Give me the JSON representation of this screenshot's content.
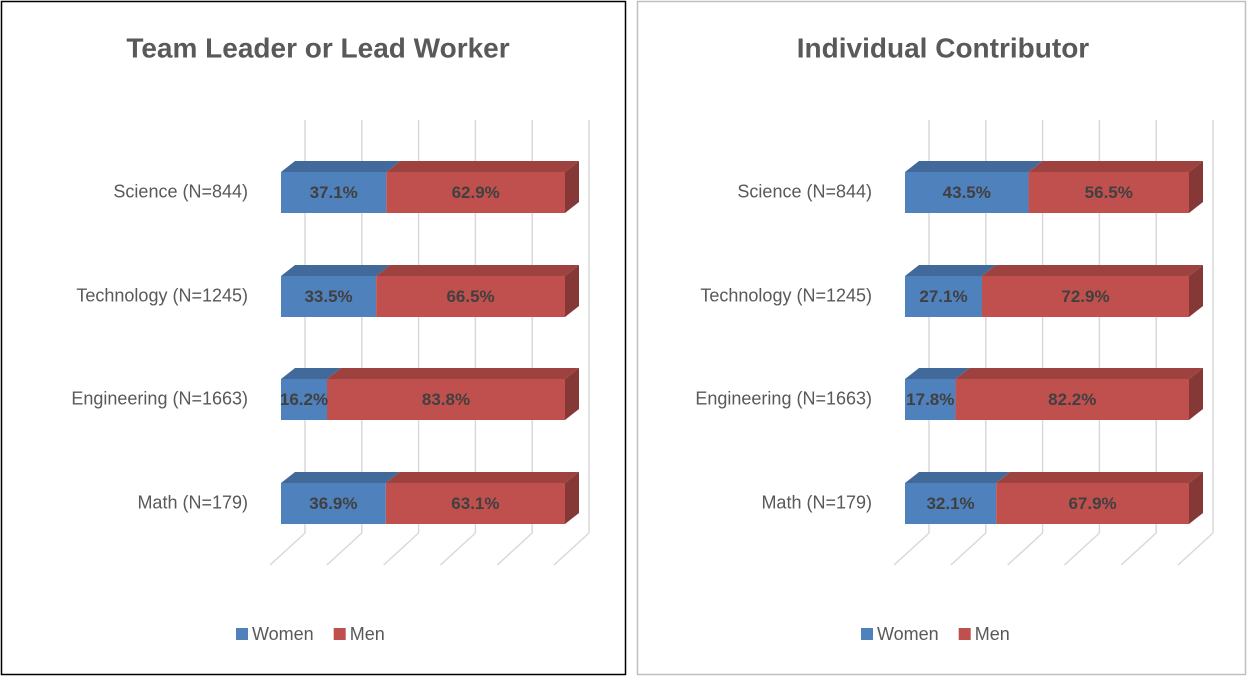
{
  "chart_data": [
    {
      "type": "bar",
      "stacked": true,
      "orientation": "horizontal",
      "title": "Team Leader or Lead Worker",
      "categories": [
        "Science (N=844)",
        "Technology (N=1245)",
        "Engineering (N=1663)",
        "Math (N=179)"
      ],
      "series": [
        {
          "name": "Women",
          "color": "#4f81bd",
          "values": [
            37.1,
            33.5,
            16.2,
            36.9
          ],
          "value_labels": [
            "37.1%",
            "33.5%",
            "16.2%",
            "36.9%"
          ]
        },
        {
          "name": "Men",
          "color": "#c0504d",
          "values": [
            62.9,
            66.5,
            83.8,
            63.1
          ],
          "value_labels": [
            "62.9%",
            "66.5%",
            "83.8%",
            "63.1%"
          ]
        }
      ],
      "xlim": [
        0,
        100
      ],
      "xticks": [
        0,
        20,
        40,
        60,
        80,
        100
      ],
      "grid": true,
      "legend": "bottom"
    },
    {
      "type": "bar",
      "stacked": true,
      "orientation": "horizontal",
      "title": "Individual Contributor",
      "categories": [
        "Science (N=844)",
        "Technology (N=1245)",
        "Engineering (N=1663)",
        "Math (N=179)"
      ],
      "series": [
        {
          "name": "Women",
          "color": "#4f81bd",
          "values": [
            43.5,
            27.1,
            17.8,
            32.1
          ],
          "value_labels": [
            "43.5%",
            "27.1%",
            "17.8%",
            "32.1%"
          ]
        },
        {
          "name": "Men",
          "color": "#c0504d",
          "values": [
            56.5,
            72.9,
            82.2,
            67.9
          ],
          "value_labels": [
            "56.5%",
            "72.9%",
            "82.2%",
            "67.9%"
          ]
        }
      ],
      "xlim": [
        0,
        100
      ],
      "xticks": [
        0,
        20,
        40,
        60,
        80,
        100
      ],
      "grid": true,
      "legend": "bottom"
    }
  ]
}
